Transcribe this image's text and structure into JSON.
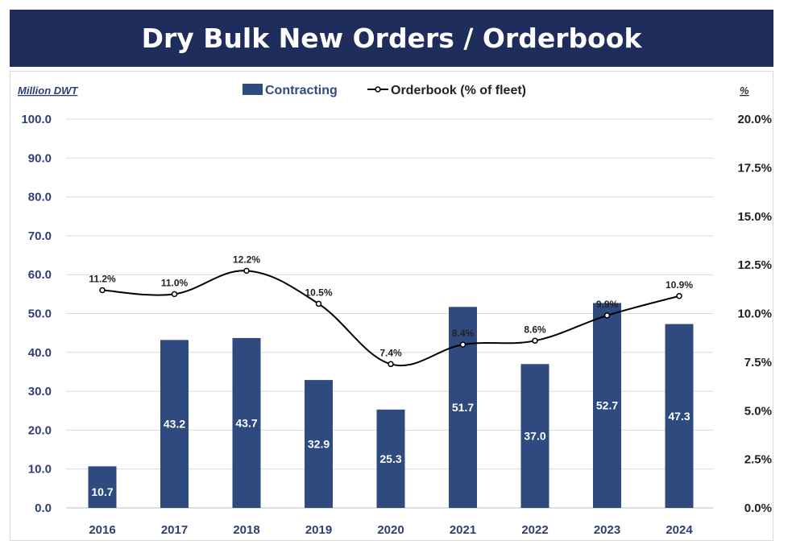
{
  "header": {
    "title": "Dry Bulk New Orders / Orderbook"
  },
  "chart_data": {
    "type": "bar",
    "title": "Dry Bulk New Orders / Orderbook",
    "ylabel_left": "Million DWT",
    "ylabel_right": "%",
    "categories": [
      "2016",
      "2017",
      "2018",
      "2019",
      "2020",
      "2021",
      "2022",
      "2023",
      "2024"
    ],
    "ylim_left": [
      0,
      100
    ],
    "ylim_right": [
      0,
      20
    ],
    "yticks_left": [
      "0.0",
      "10.0",
      "20.0",
      "30.0",
      "40.0",
      "50.0",
      "60.0",
      "70.0",
      "80.0",
      "90.0",
      "100.0"
    ],
    "yticks_right": [
      "0.0%",
      "2.5%",
      "5.0%",
      "7.5%",
      "10.0%",
      "12.5%",
      "15.0%",
      "17.5%",
      "20.0%"
    ],
    "grid": true,
    "legend_position": "top-center",
    "series": [
      {
        "name": "Contracting",
        "kind": "bar",
        "color": "#2e4a7f",
        "values": [
          10.7,
          43.2,
          43.7,
          32.9,
          25.3,
          51.7,
          37.0,
          52.7,
          47.3
        ],
        "labels": [
          "10.7",
          "43.2",
          "43.7",
          "32.9",
          "25.3",
          "51.7",
          "37.0",
          "52.7",
          "47.3"
        ]
      },
      {
        "name": "Orderbook (% of fleet)",
        "kind": "line",
        "axis": "right",
        "color": "#000000",
        "values": [
          11.2,
          11.0,
          12.2,
          10.5,
          7.4,
          8.4,
          8.6,
          9.9,
          10.9
        ],
        "labels": [
          "11.2%",
          "11.0%",
          "12.2%",
          "10.5%",
          "7.4%",
          "8.4%",
          "8.6%",
          "9.9%",
          "10.9%"
        ]
      }
    ]
  }
}
